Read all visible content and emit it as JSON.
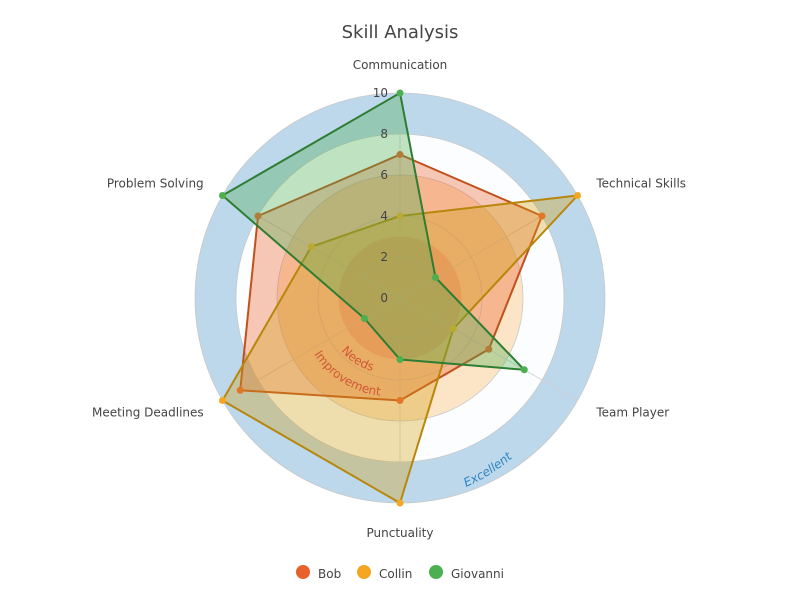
{
  "chart_data": {
    "type": "radar",
    "title": "Skill Analysis",
    "categories": [
      "Communication",
      "Technical Skills",
      "Team Player",
      "Punctuality",
      "Meeting Deadlines",
      "Problem Solving"
    ],
    "radial_range": [
      0,
      10
    ],
    "radial_ticks": [
      "0",
      "2",
      "4",
      "6",
      "8",
      "10"
    ],
    "grid": true,
    "legend_position": "bottom",
    "background_bands": [
      {
        "from": 8,
        "to": 10,
        "color": "#b9d5ea"
      },
      {
        "from": 5,
        "to": 8,
        "color": "#ffffff"
      },
      {
        "from": 3,
        "to": 6,
        "color": "#fce3c4"
      },
      {
        "from": 0,
        "to": 3,
        "color": "#f8b9ac"
      }
    ],
    "annotations": [
      {
        "text": "Needs Improvement",
        "color": "#c0145a"
      },
      {
        "text": "Excellent",
        "color": "#2e86c1"
      }
    ],
    "series": [
      {
        "name": "Bob",
        "color": "#e8602c",
        "line_color": "#c0501c",
        "fill_color": "#e8602c",
        "values": [
          7,
          8,
          5,
          5,
          9,
          8
        ]
      },
      {
        "name": "Collin",
        "color": "#f5a623",
        "line_color": "#b8860b",
        "fill_color": "#d4a017",
        "values": [
          4,
          10,
          3,
          10,
          10,
          5
        ]
      },
      {
        "name": "Giovanni",
        "color": "#4caf50",
        "line_color": "#2e7d32",
        "fill_color": "#4caf50",
        "values": [
          10,
          2,
          7,
          3,
          2,
          10
        ]
      }
    ]
  }
}
